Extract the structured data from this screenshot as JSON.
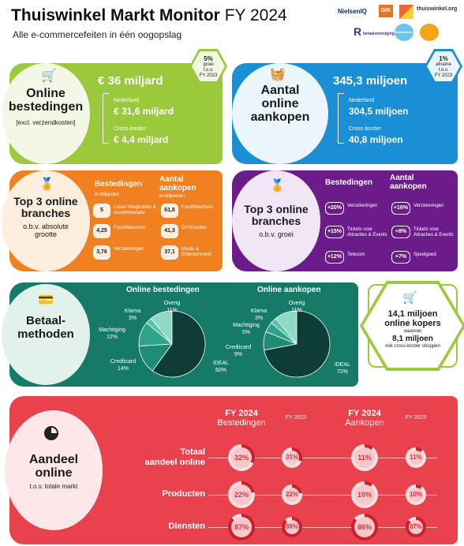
{
  "header": {
    "title": "Thuiswinkel Markt Monitor",
    "year": "FY 2024",
    "subtitle": "Alle e-commercefeiten in één oogopslag",
    "logos": [
      "NielsenIQ",
      "GfK",
      "thuiswinkel.org",
      "betaalvereniging",
      "Ecommerce Europe"
    ]
  },
  "bestedingen": {
    "title_line1": "Online",
    "title_line2": "bestedingen",
    "note": "[excl. verzendkosten]",
    "total": "€ 36 miljard",
    "nl_label": "Nederland",
    "nl_value": "€ 31,6 miljard",
    "cb_label": "Cross-border",
    "cb_value": "€ 4,4 miljard",
    "growth_pct": "5%",
    "growth_word": "groei",
    "growth_ref1": "t.o.v.",
    "growth_ref2": "FY 2023"
  },
  "aankopen": {
    "title_line1": "Aantal",
    "title_line2": "online",
    "title_line3": "aankopen",
    "total": "345,3 miljoen",
    "nl_label": "Nederland",
    "nl_value": "304,5 miljoen",
    "cb_label": "Cross-border",
    "cb_value": "40,8 miljoen",
    "change_pct": "1%",
    "change_word": "afname",
    "change_ref1": "t.o.v.",
    "change_ref2": "FY 2023"
  },
  "top3_abs": {
    "title_line1": "Top 3 online",
    "title_line2": "branches",
    "sub1": "o.b.v. absolute",
    "sub2": "grootte",
    "col1_head": "Bestedingen",
    "col1_unit": "in miljarden",
    "col2_head1": "Aantal",
    "col2_head2": "aankopen",
    "col2_unit": "in miljoenen",
    "left": [
      {
        "value": "5",
        "label": "Losse Vliegtickets & Accommodatie"
      },
      {
        "value": "4,25",
        "label": "Food/Nearfood"
      },
      {
        "value": "3,76",
        "label": "Verzekeringen"
      }
    ],
    "right": [
      {
        "value": "61,8",
        "label": "Food/Nearfood"
      },
      {
        "value": "41,3",
        "label": "DIY/Garden"
      },
      {
        "value": "37,1",
        "label": "Media & Entertainment"
      }
    ]
  },
  "top3_growth": {
    "title_line1": "Top 3 online",
    "title_line2": "branches",
    "sub": "o.b.v. groei",
    "col1_head": "Bestedingen",
    "col2_head1": "Aantal",
    "col2_head2": "aankopen",
    "left": [
      {
        "value": "+20%",
        "label": "Verzekeringen"
      },
      {
        "value": "+15%",
        "label": "Tickets voor Attracties & Events"
      },
      {
        "value": "+12%",
        "label": "Telecom"
      }
    ],
    "right": [
      {
        "value": "+16%",
        "label": "Verzekeringen"
      },
      {
        "value": "+8%",
        "label": "Tickets voor Attracties & Events"
      },
      {
        "value": "+7%",
        "label": "Speelgoed"
      }
    ]
  },
  "betaal": {
    "title_line1": "Betaal-",
    "title_line2": "methoden",
    "pie1_title": "Online bestedingen",
    "pie2_title": "Online aankopen",
    "pie1": [
      {
        "name": "iDEAL",
        "pct": "60%",
        "value": 60
      },
      {
        "name": "Creditcard",
        "pct": "14%",
        "value": 14
      },
      {
        "name": "Machtiging",
        "pct": "12%",
        "value": 12
      },
      {
        "name": "Klarna",
        "pct": "3%",
        "value": 3
      },
      {
        "name": "Overig",
        "pct": "11%",
        "value": 11
      }
    ],
    "pie2": [
      {
        "name": "iDEAL",
        "pct": "72%",
        "value": 72
      },
      {
        "name": "Creditcard",
        "pct": "9%",
        "value": 9
      },
      {
        "name": "Machtiging",
        "pct": "5%",
        "value": 5
      },
      {
        "name": "Klarna",
        "pct": "3%",
        "value": 3
      },
      {
        "name": "Overig",
        "pct": "11%",
        "value": 11
      }
    ]
  },
  "kopers": {
    "line1": "14,1 miljoen",
    "line2": "online kopers",
    "waarvan": "waarvan",
    "line3": "8,1 miljoen",
    "line4": "ook cross-border shoppen"
  },
  "aandeel": {
    "title_line1": "Aandeel",
    "title_line2": "online",
    "sub": "t.o.v. totale markt",
    "col1_year": "FY 2024",
    "col1_label": "Bestedingen",
    "col2_year": "FY 2023",
    "col3_year": "FY 2024",
    "col3_label": "Aankopen",
    "col4_year": "FY 2023",
    "rows": [
      {
        "label1": "Totaal",
        "label2": "aandeel online",
        "values": [
          "32%",
          "31%",
          "11%",
          "11%"
        ],
        "nums": [
          32,
          31,
          11,
          11
        ]
      },
      {
        "label1": "Producten",
        "label2": "",
        "values": [
          "22%",
          "22%",
          "10%",
          "10%"
        ],
        "nums": [
          22,
          22,
          10,
          10
        ]
      },
      {
        "label1": "Diensten",
        "label2": "",
        "values": [
          "87%",
          "88%",
          "86%",
          "87%"
        ],
        "nums": [
          87,
          88,
          86,
          87
        ]
      }
    ]
  },
  "colors": {
    "green": "#9bc93c",
    "blue": "#1a8fd6",
    "orange": "#f08020",
    "purple": "#6c1b8a",
    "teal": "#167a68",
    "red": "#e9424d",
    "pink": "#f9dfe0",
    "dark": "#0e3d35"
  }
}
